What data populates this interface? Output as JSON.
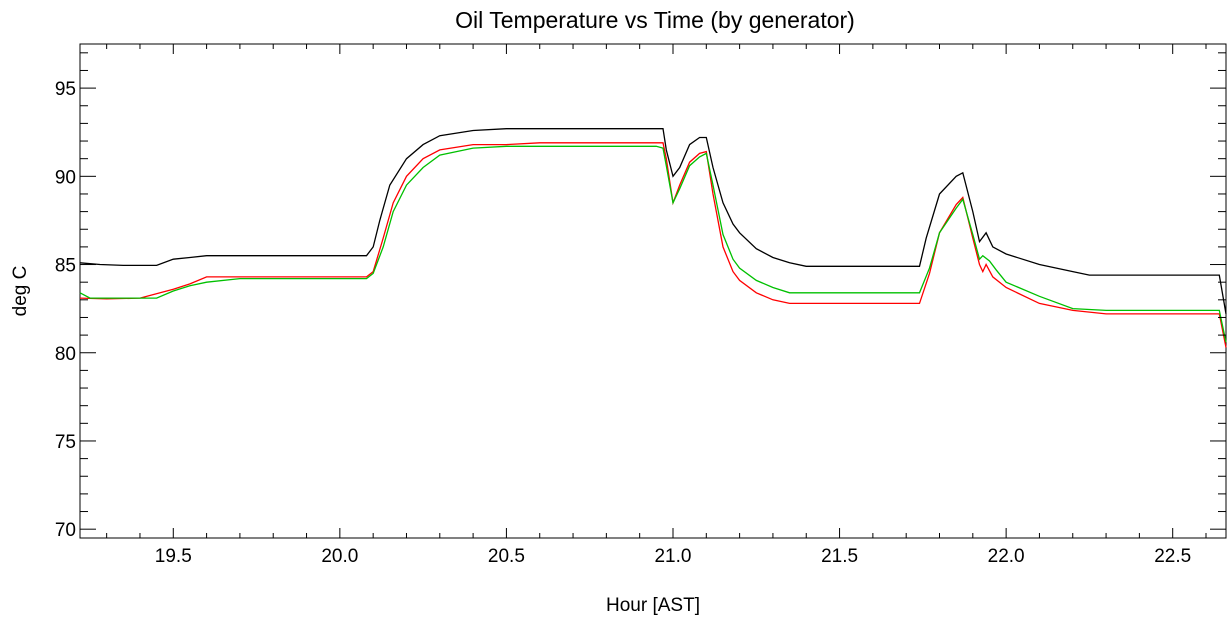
{
  "chart_data": {
    "type": "line",
    "title": "Oil Temperature vs Time (by generator)",
    "xlabel": "Hour [AST]",
    "ylabel": "deg C",
    "xlim": [
      19.22,
      22.66
    ],
    "ylim": [
      69.5,
      97.5
    ],
    "xticks": [
      19.5,
      20.0,
      20.5,
      21.0,
      21.5,
      22.0,
      22.5
    ],
    "yticks": [
      70,
      75,
      80,
      85,
      90,
      95
    ],
    "x_minor_step": 0.1,
    "y_minor_step": 1,
    "grid": false,
    "legend": "none",
    "series": [
      {
        "color": "#000000",
        "points": [
          [
            19.22,
            85.1
          ],
          [
            19.28,
            85.0
          ],
          [
            19.35,
            84.95
          ],
          [
            19.45,
            84.95
          ],
          [
            19.5,
            85.3
          ],
          [
            19.55,
            85.4
          ],
          [
            19.6,
            85.5
          ],
          [
            19.8,
            85.5
          ],
          [
            20.0,
            85.5
          ],
          [
            20.08,
            85.5
          ],
          [
            20.1,
            86.0
          ],
          [
            20.12,
            87.5
          ],
          [
            20.15,
            89.5
          ],
          [
            20.2,
            91.0
          ],
          [
            20.25,
            91.8
          ],
          [
            20.3,
            92.3
          ],
          [
            20.4,
            92.6
          ],
          [
            20.5,
            92.7
          ],
          [
            20.6,
            92.7
          ],
          [
            20.9,
            92.7
          ],
          [
            20.97,
            92.7
          ],
          [
            20.98,
            91.5
          ],
          [
            21.0,
            90.0
          ],
          [
            21.02,
            90.5
          ],
          [
            21.05,
            91.8
          ],
          [
            21.08,
            92.2
          ],
          [
            21.1,
            92.2
          ],
          [
            21.12,
            90.5
          ],
          [
            21.15,
            88.5
          ],
          [
            21.18,
            87.3
          ],
          [
            21.2,
            86.8
          ],
          [
            21.25,
            85.9
          ],
          [
            21.3,
            85.4
          ],
          [
            21.35,
            85.1
          ],
          [
            21.4,
            84.9
          ],
          [
            21.6,
            84.9
          ],
          [
            21.74,
            84.9
          ],
          [
            21.76,
            86.5
          ],
          [
            21.8,
            89.0
          ],
          [
            21.85,
            90.0
          ],
          [
            21.87,
            90.2
          ],
          [
            21.9,
            88.0
          ],
          [
            21.92,
            86.3
          ],
          [
            21.94,
            86.8
          ],
          [
            21.96,
            86.0
          ],
          [
            22.0,
            85.6
          ],
          [
            22.1,
            85.0
          ],
          [
            22.2,
            84.6
          ],
          [
            22.25,
            84.4
          ],
          [
            22.64,
            84.4
          ],
          [
            22.66,
            82.2
          ]
        ]
      },
      {
        "color": "#ff0000",
        "points": [
          [
            19.22,
            83.1
          ],
          [
            19.3,
            83.05
          ],
          [
            19.4,
            83.1
          ],
          [
            19.5,
            83.6
          ],
          [
            19.55,
            83.9
          ],
          [
            19.6,
            84.3
          ],
          [
            20.0,
            84.3
          ],
          [
            20.08,
            84.3
          ],
          [
            20.1,
            84.6
          ],
          [
            20.13,
            86.5
          ],
          [
            20.16,
            88.5
          ],
          [
            20.2,
            90.0
          ],
          [
            20.25,
            91.0
          ],
          [
            20.3,
            91.5
          ],
          [
            20.4,
            91.8
          ],
          [
            20.5,
            91.8
          ],
          [
            20.6,
            91.9
          ],
          [
            20.95,
            91.9
          ],
          [
            20.97,
            91.9
          ],
          [
            20.98,
            91.0
          ],
          [
            21.0,
            88.5
          ],
          [
            21.02,
            89.5
          ],
          [
            21.05,
            90.8
          ],
          [
            21.08,
            91.3
          ],
          [
            21.1,
            91.4
          ],
          [
            21.12,
            89.0
          ],
          [
            21.15,
            86.0
          ],
          [
            21.18,
            84.6
          ],
          [
            21.2,
            84.1
          ],
          [
            21.25,
            83.4
          ],
          [
            21.3,
            83.0
          ],
          [
            21.35,
            82.8
          ],
          [
            21.5,
            82.8
          ],
          [
            21.74,
            82.8
          ],
          [
            21.77,
            84.5
          ],
          [
            21.8,
            86.8
          ],
          [
            21.85,
            88.4
          ],
          [
            21.87,
            88.8
          ],
          [
            21.9,
            86.5
          ],
          [
            21.92,
            85.0
          ],
          [
            21.93,
            84.6
          ],
          [
            21.94,
            85.0
          ],
          [
            21.96,
            84.3
          ],
          [
            22.0,
            83.7
          ],
          [
            22.1,
            82.8
          ],
          [
            22.2,
            82.4
          ],
          [
            22.3,
            82.2
          ],
          [
            22.64,
            82.2
          ],
          [
            22.66,
            80.3
          ]
        ]
      },
      {
        "color": "#00c000",
        "points": [
          [
            19.22,
            83.4
          ],
          [
            19.25,
            83.1
          ],
          [
            19.45,
            83.1
          ],
          [
            19.5,
            83.5
          ],
          [
            19.55,
            83.8
          ],
          [
            19.6,
            84.0
          ],
          [
            19.7,
            84.2
          ],
          [
            20.0,
            84.2
          ],
          [
            20.08,
            84.2
          ],
          [
            20.1,
            84.5
          ],
          [
            20.13,
            86.0
          ],
          [
            20.16,
            88.0
          ],
          [
            20.2,
            89.5
          ],
          [
            20.25,
            90.5
          ],
          [
            20.3,
            91.2
          ],
          [
            20.4,
            91.6
          ],
          [
            20.5,
            91.7
          ],
          [
            20.95,
            91.7
          ],
          [
            20.97,
            91.6
          ],
          [
            20.98,
            90.6
          ],
          [
            21.0,
            88.5
          ],
          [
            21.02,
            89.3
          ],
          [
            21.05,
            90.6
          ],
          [
            21.08,
            91.1
          ],
          [
            21.1,
            91.3
          ],
          [
            21.12,
            89.5
          ],
          [
            21.15,
            86.7
          ],
          [
            21.18,
            85.3
          ],
          [
            21.2,
            84.8
          ],
          [
            21.25,
            84.1
          ],
          [
            21.3,
            83.7
          ],
          [
            21.35,
            83.4
          ],
          [
            21.5,
            83.4
          ],
          [
            21.74,
            83.4
          ],
          [
            21.77,
            84.8
          ],
          [
            21.8,
            86.8
          ],
          [
            21.85,
            88.2
          ],
          [
            21.87,
            88.7
          ],
          [
            21.9,
            86.7
          ],
          [
            21.92,
            85.3
          ],
          [
            21.93,
            85.5
          ],
          [
            21.95,
            85.2
          ],
          [
            21.97,
            84.7
          ],
          [
            22.0,
            84.0
          ],
          [
            22.1,
            83.2
          ],
          [
            22.2,
            82.5
          ],
          [
            22.3,
            82.4
          ],
          [
            22.64,
            82.4
          ],
          [
            22.66,
            80.6
          ]
        ]
      }
    ]
  }
}
